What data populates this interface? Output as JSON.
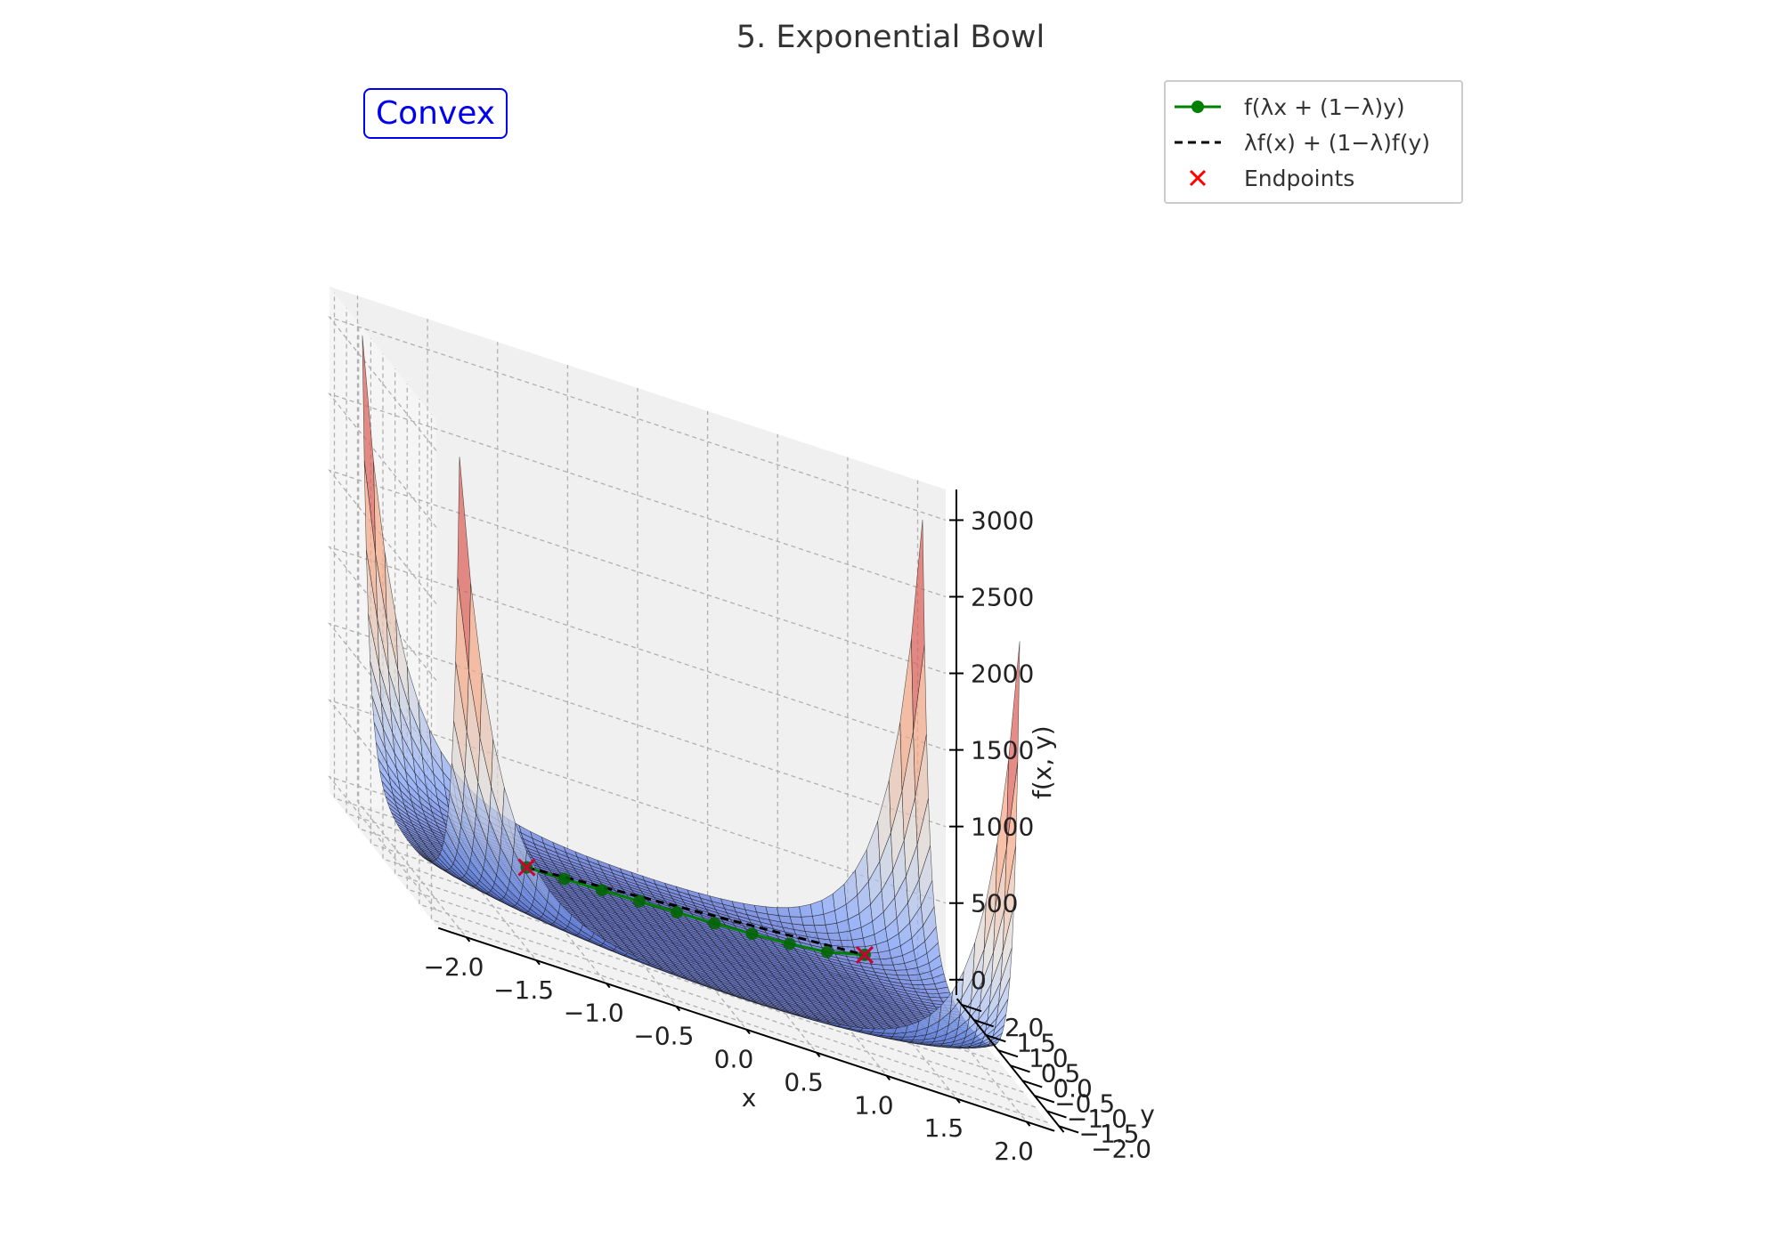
{
  "title": "5. Exponential Bowl",
  "badge": "Convex",
  "legend": {
    "items": [
      {
        "label": "f(λx + (1−λ)y)",
        "color": "#008000"
      },
      {
        "label": "λf(x) + (1−λ)f(y)",
        "color": "#000000"
      },
      {
        "label": "Endpoints",
        "color": "#ff0000"
      }
    ]
  },
  "chart_data": {
    "type": "surface3d",
    "title": "5. Exponential Bowl",
    "xlabel": "x",
    "ylabel": "y",
    "zlabel": "f(x, y)",
    "xlim": [
      -2.2,
      2.2
    ],
    "ylim": [
      -2.2,
      2.2
    ],
    "zlim": [
      -100,
      3200
    ],
    "x_ticks": [
      "−2.0",
      "−1.5",
      "−1.0",
      "−0.5",
      "0.0",
      "0.5",
      "1.0",
      "1.5",
      "2.0"
    ],
    "y_ticks": [
      "−2.0",
      "−1.5",
      "−1.0",
      "−0.5",
      "0.0",
      "0.5",
      "1.0",
      "1.5",
      "2.0"
    ],
    "z_ticks": [
      "0",
      "500",
      "1000",
      "1500",
      "2000",
      "2500",
      "3000"
    ],
    "surface": {
      "function": "exponential bowl",
      "peak_values": [
        {
          "x": -2.0,
          "y": 2.0,
          "z": 2981
        },
        {
          "x": -2.0,
          "y": -2.0,
          "z": 2981
        },
        {
          "x": 2.0,
          "y": 2.0,
          "z": 2981
        },
        {
          "x": 2.0,
          "y": -2.0,
          "z": 2981
        }
      ],
      "colormap": "coolwarm",
      "grid": true
    },
    "segment": {
      "start": {
        "x": -1.0,
        "y": 1.0
      },
      "end": {
        "x": 1.5,
        "y": 1.5
      },
      "points": 10,
      "endpoints_marker": "x"
    }
  }
}
